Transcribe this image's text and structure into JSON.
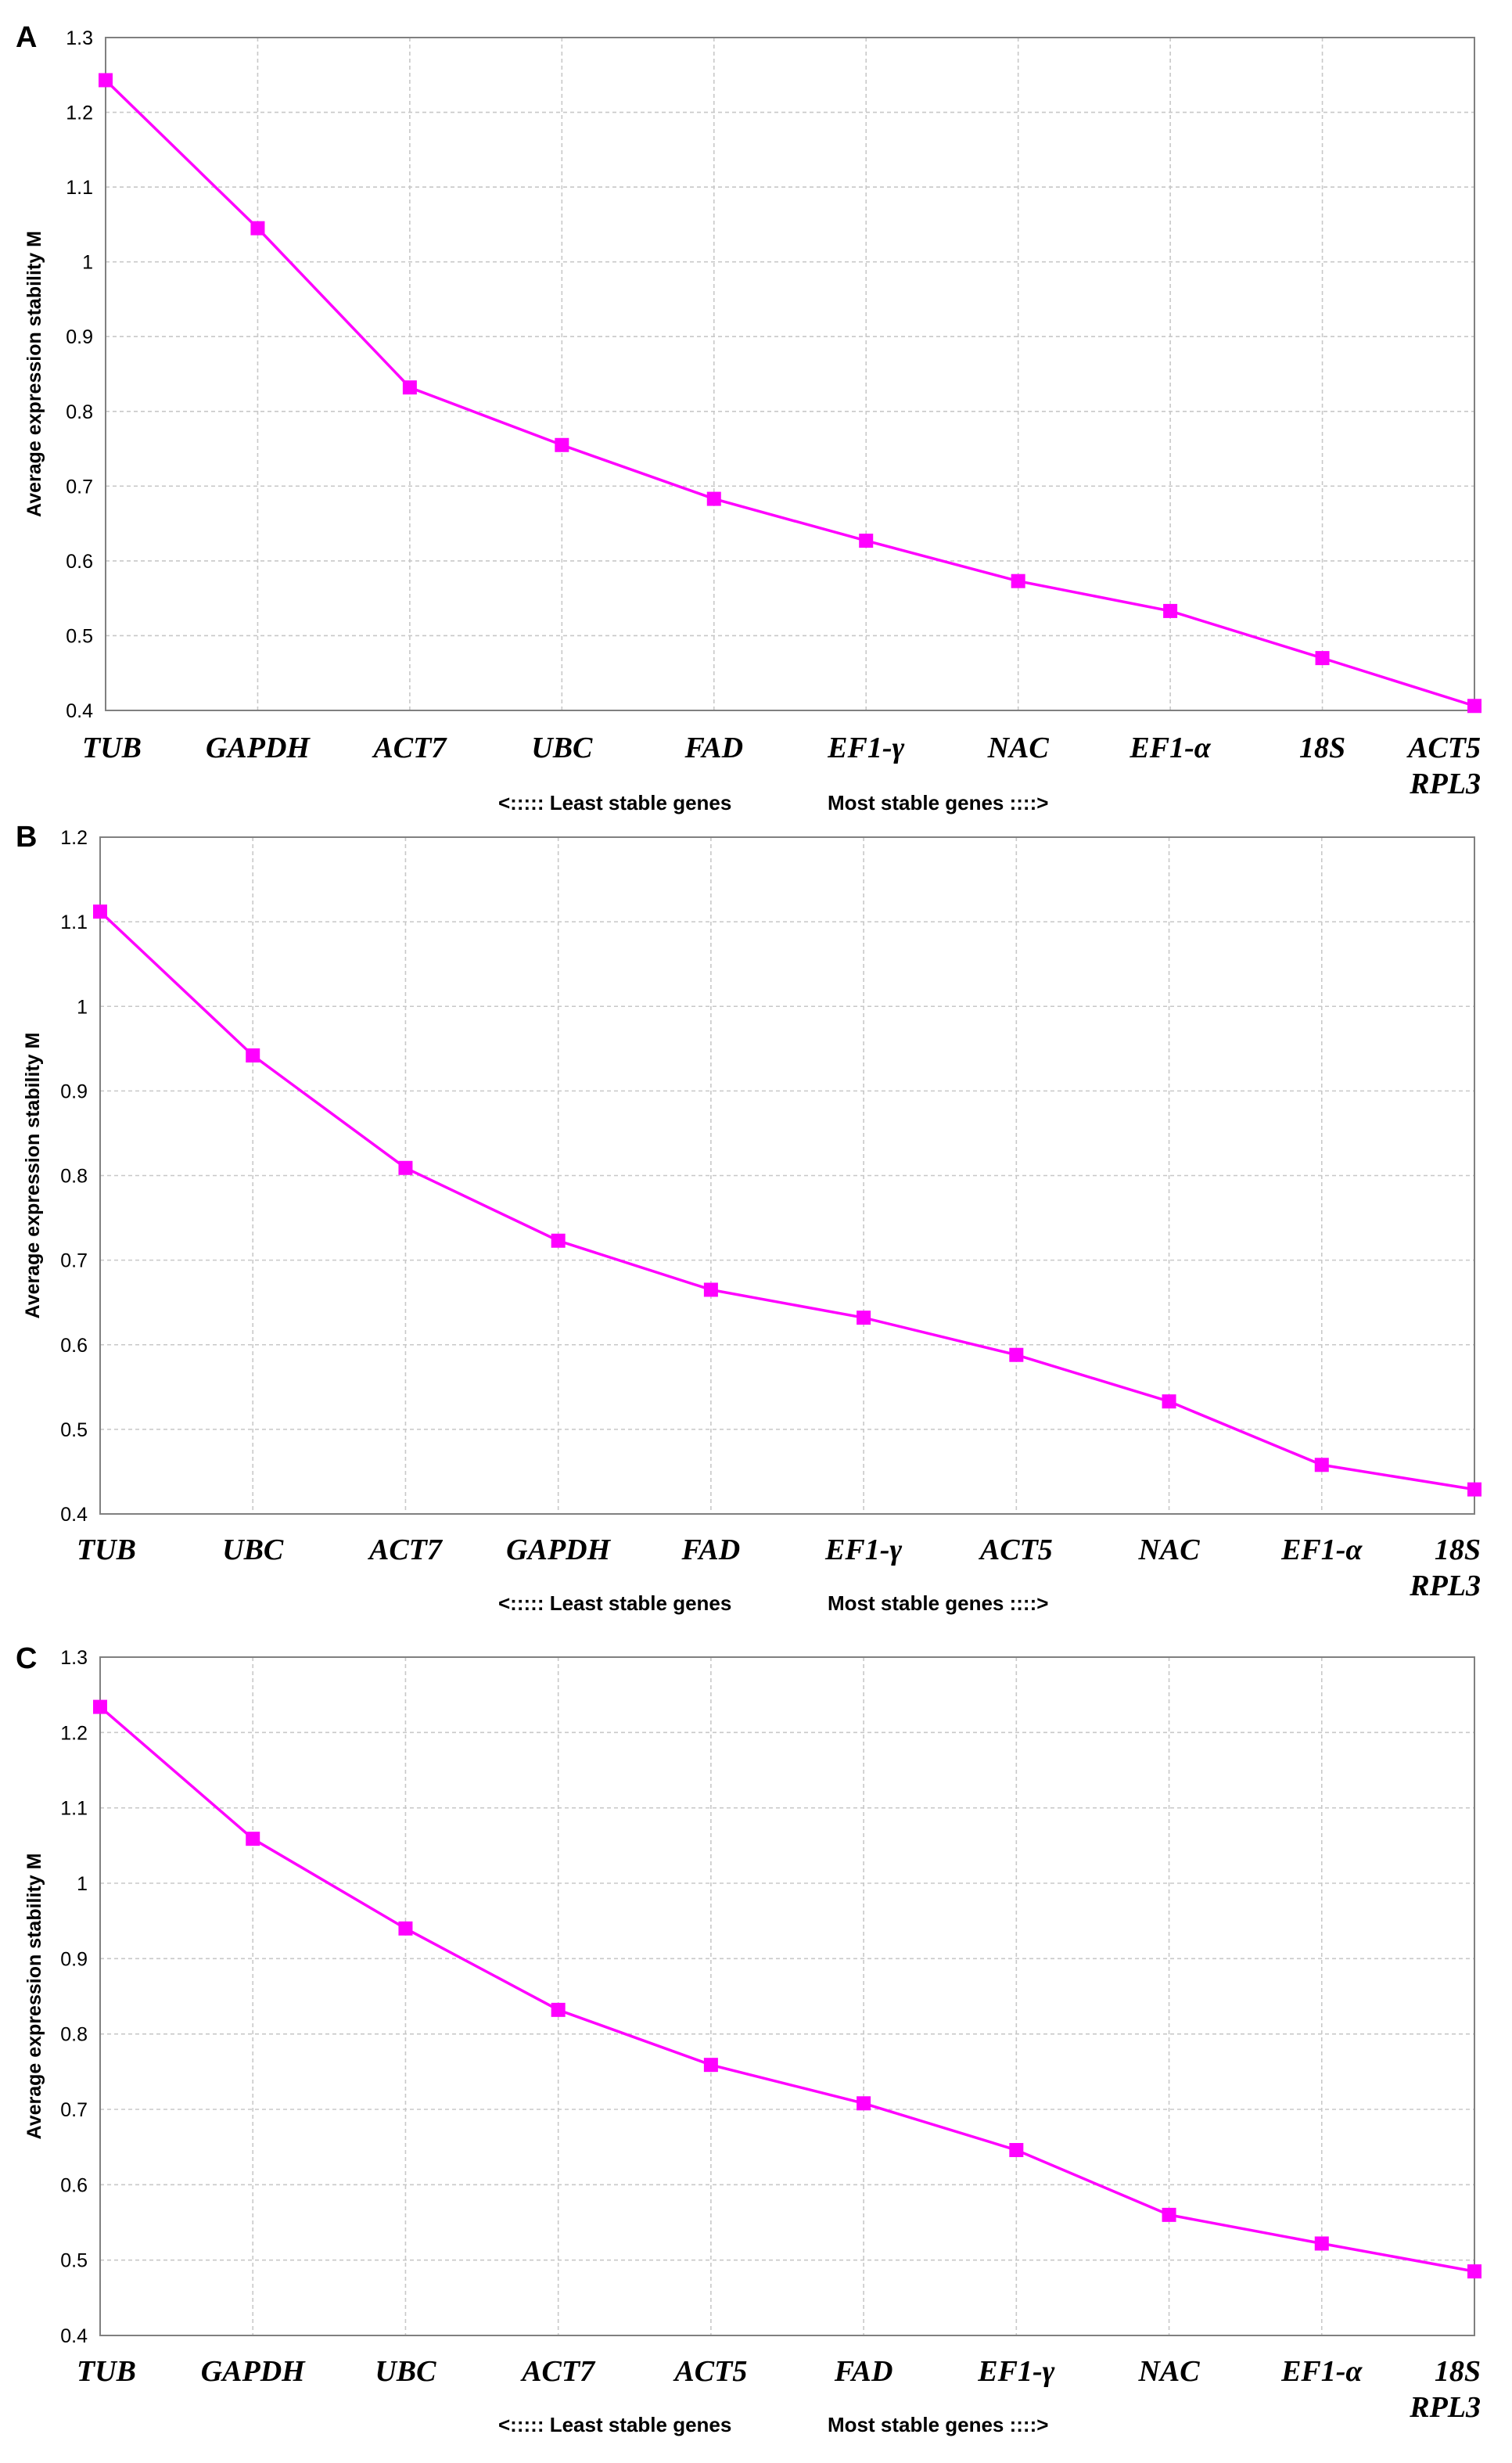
{
  "colors": {
    "series": "#ff00ff",
    "grid": "#c8c8c8",
    "frame": "#808080",
    "text": "#000000"
  },
  "chart_data": [
    {
      "panel": "A",
      "type": "line",
      "ylabel": "Average expression stability M",
      "footer_left": "<:::::  Least stable genes",
      "footer_right": "Most stable genes ::::>",
      "ylim": [
        0.4,
        1.3
      ],
      "yticks": [
        "0.4",
        "0.5",
        "0.6",
        "0.7",
        "0.8",
        "0.9",
        "1",
        "1.1",
        "1.2",
        "1.3"
      ],
      "grid": true,
      "categories": [
        [
          "TUB"
        ],
        [
          "GAPDH"
        ],
        [
          "ACT7"
        ],
        [
          "UBC"
        ],
        [
          "FAD"
        ],
        [
          "EF1-γ"
        ],
        [
          "NAC"
        ],
        [
          "EF1-α"
        ],
        [
          "18S"
        ],
        [
          "ACT5",
          "RPL3"
        ]
      ],
      "values": [
        1.243,
        1.045,
        0.832,
        0.755,
        0.683,
        0.627,
        0.573,
        0.533,
        0.47,
        0.406
      ]
    },
    {
      "panel": "B",
      "type": "line",
      "ylabel": "Average expression stability M",
      "footer_left": "<:::::  Least stable genes",
      "footer_right": "Most stable genes ::::>",
      "ylim": [
        0.4,
        1.2
      ],
      "yticks": [
        "0.4",
        "0.5",
        "0.6",
        "0.7",
        "0.8",
        "0.9",
        "1",
        "1.1",
        "1.2"
      ],
      "grid": true,
      "categories": [
        [
          "TUB"
        ],
        [
          "UBC"
        ],
        [
          "ACT7"
        ],
        [
          "GAPDH"
        ],
        [
          "FAD"
        ],
        [
          "EF1-γ"
        ],
        [
          "ACT5"
        ],
        [
          "NAC"
        ],
        [
          "EF1-α"
        ],
        [
          "18S",
          "RPL3"
        ]
      ],
      "values": [
        1.112,
        0.942,
        0.809,
        0.723,
        0.665,
        0.632,
        0.588,
        0.533,
        0.458,
        0.429
      ]
    },
    {
      "panel": "C",
      "type": "line",
      "ylabel": "Average expression stability M",
      "footer_left": "<:::::  Least stable genes",
      "footer_right": "Most stable genes ::::>",
      "ylim": [
        0.4,
        1.3
      ],
      "yticks": [
        "0.4",
        "0.5",
        "0.6",
        "0.7",
        "0.8",
        "0.9",
        "1",
        "1.1",
        "1.2",
        "1.3"
      ],
      "grid": true,
      "categories": [
        [
          "TUB"
        ],
        [
          "GAPDH"
        ],
        [
          "UBC"
        ],
        [
          "ACT7"
        ],
        [
          "ACT5"
        ],
        [
          "FAD"
        ],
        [
          "EF1-γ"
        ],
        [
          "NAC"
        ],
        [
          "EF1-α"
        ],
        [
          "18S",
          "RPL3"
        ]
      ],
      "values": [
        1.234,
        1.059,
        0.94,
        0.832,
        0.759,
        0.708,
        0.646,
        0.56,
        0.522,
        0.485
      ]
    }
  ]
}
